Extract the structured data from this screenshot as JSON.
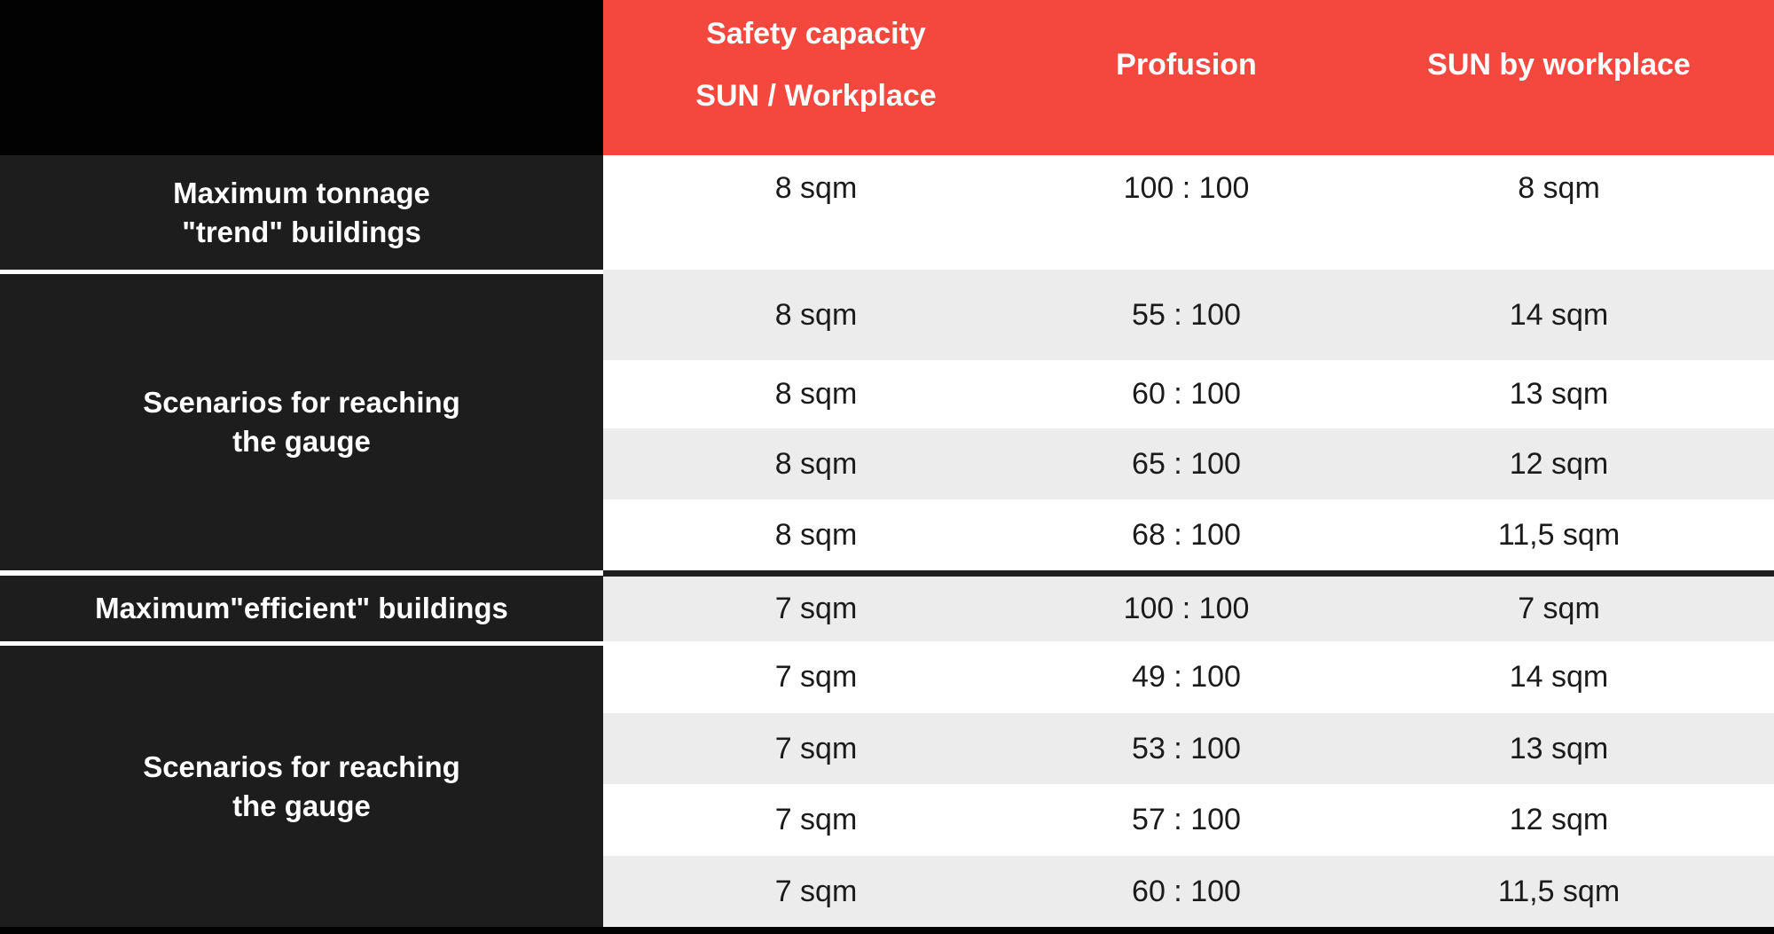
{
  "colors": {
    "header_red": "#F4483F",
    "row_gray": "#ECECEC",
    "row_white": "#FFFFFF",
    "label_dark": "#1D1D1D",
    "corner_black": "#020202",
    "divider_dark": "#1E1E1E",
    "sep_white": "#FFFFFF",
    "text_dark": "#1B1B1B",
    "text_white": "#FFFFFF"
  },
  "header": {
    "capacity_line1": "Safety capacity",
    "capacity_line2": "SUN / Workplace",
    "profusion": "Profusion",
    "sun_by_workplace": "SUN by workplace"
  },
  "row_labels": {
    "trend": {
      "line1": "Maximum tonnage",
      "line2": "\"trend\" buildings"
    },
    "scenarios1": {
      "line1": "Scenarios for reaching",
      "line2": "the gauge"
    },
    "efficient": {
      "line1": "Maximum\"efficient\" buildings"
    },
    "scenarios2": {
      "line1": "Scenarios for reaching",
      "line2": "the gauge"
    }
  },
  "rows": [
    {
      "capacity": "8 sqm",
      "profusion": "100 : 100",
      "sun": "8 sqm"
    },
    {
      "capacity": "8 sqm",
      "profusion": "55 : 100",
      "sun": "14 sqm"
    },
    {
      "capacity": "8 sqm",
      "profusion": "60 : 100",
      "sun": "13 sqm"
    },
    {
      "capacity": "8 sqm",
      "profusion": "65 : 100",
      "sun": "12 sqm"
    },
    {
      "capacity": "8 sqm",
      "profusion": "68 : 100",
      "sun": "11,5 sqm"
    },
    {
      "capacity": "7 sqm",
      "profusion": "100 : 100",
      "sun": "7 sqm"
    },
    {
      "capacity": "7 sqm",
      "profusion": "49 : 100",
      "sun": "14 sqm"
    },
    {
      "capacity": "7 sqm",
      "profusion": "53 : 100",
      "sun": "13 sqm"
    },
    {
      "capacity": "7 sqm",
      "profusion": "57 : 100",
      "sun": "12 sqm"
    },
    {
      "capacity": "7 sqm",
      "profusion": "60 : 100",
      "sun": "11,5 sqm"
    }
  ],
  "chart_data": {
    "type": "table",
    "columns": [
      "",
      "Safety capacity SUN / Workplace",
      "Profusion",
      "SUN by workplace"
    ],
    "rows": [
      [
        "Maximum tonnage \"trend\" buildings",
        "8 sqm",
        "100 : 100",
        "8 sqm"
      ],
      [
        "Scenarios for reaching the gauge",
        "8 sqm",
        "55 : 100",
        "14 sqm"
      ],
      [
        "Scenarios for reaching the gauge",
        "8 sqm",
        "60 : 100",
        "13 sqm"
      ],
      [
        "Scenarios for reaching the gauge",
        "8 sqm",
        "65 : 100",
        "12 sqm"
      ],
      [
        "Scenarios for reaching the gauge",
        "8 sqm",
        "68 : 100",
        "11,5 sqm"
      ],
      [
        "Maximum\"efficient\" buildings",
        "7 sqm",
        "100 : 100",
        "7 sqm"
      ],
      [
        "Scenarios for reaching the gauge",
        "7 sqm",
        "49 : 100",
        "14 sqm"
      ],
      [
        "Scenarios for reaching the gauge",
        "7 sqm",
        "53 : 100",
        "13 sqm"
      ],
      [
        "Scenarios for reaching the gauge",
        "7 sqm",
        "57 : 100",
        "12 sqm"
      ],
      [
        "Scenarios for reaching the gauge",
        "7 sqm",
        "60 : 100",
        "11,5 sqm"
      ]
    ],
    "layout": {
      "grid": false,
      "legend": "none",
      "header_background": "#F4483F",
      "row_label_background": "#1D1D1D",
      "alternating_rows": true
    }
  }
}
